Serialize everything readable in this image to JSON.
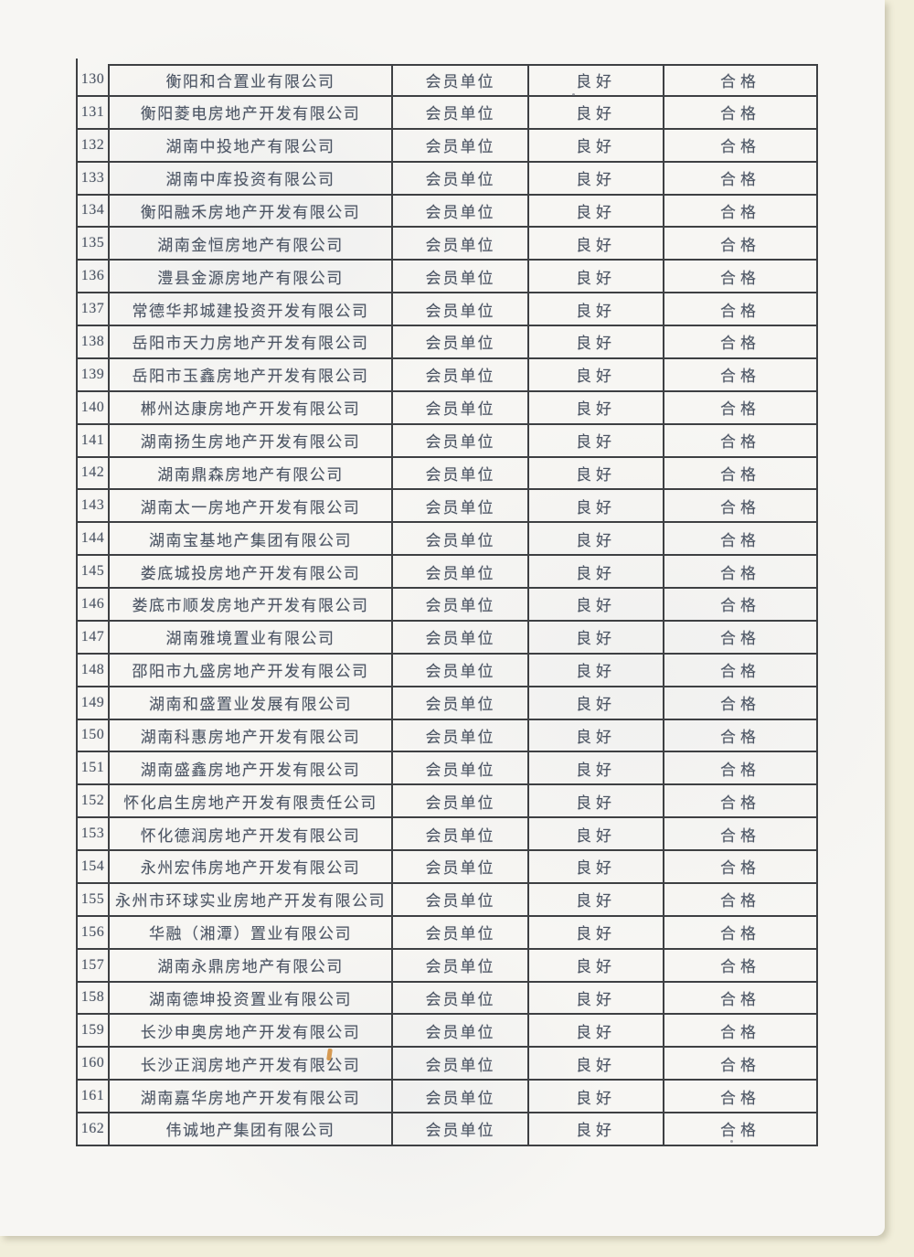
{
  "colors": {
    "backdrop": "#f1eeda",
    "page": "#f7f6f3",
    "border": "#3e4043",
    "text": "#4c5564",
    "pen_mark": "#d08a35"
  },
  "table": {
    "rows": [
      {
        "no": "130",
        "company": "衡阳和合置业有限公司",
        "membership": "会员单位",
        "credit": "良好",
        "result": "合格"
      },
      {
        "no": "131",
        "company": "衡阳菱电房地产开发有限公司",
        "membership": "会员单位",
        "credit": "良好",
        "result": "合格"
      },
      {
        "no": "132",
        "company": "湖南中投地产有限公司",
        "membership": "会员单位",
        "credit": "良好",
        "result": "合格"
      },
      {
        "no": "133",
        "company": "湖南中库投资有限公司",
        "membership": "会员单位",
        "credit": "良好",
        "result": "合格"
      },
      {
        "no": "134",
        "company": "衡阳融禾房地产开发有限公司",
        "membership": "会员单位",
        "credit": "良好",
        "result": "合格"
      },
      {
        "no": "135",
        "company": "湖南金恒房地产有限公司",
        "membership": "会员单位",
        "credit": "良好",
        "result": "合格"
      },
      {
        "no": "136",
        "company": "澧县金源房地产有限公司",
        "membership": "会员单位",
        "credit": "良好",
        "result": "合格"
      },
      {
        "no": "137",
        "company": "常德华邦城建投资开发有限公司",
        "membership": "会员单位",
        "credit": "良好",
        "result": "合格"
      },
      {
        "no": "138",
        "company": "岳阳市天力房地产开发有限公司",
        "membership": "会员单位",
        "credit": "良好",
        "result": "合格"
      },
      {
        "no": "139",
        "company": "岳阳市玉鑫房地产开发有限公司",
        "membership": "会员单位",
        "credit": "良好",
        "result": "合格"
      },
      {
        "no": "140",
        "company": "郴州达康房地产开发有限公司",
        "membership": "会员单位",
        "credit": "良好",
        "result": "合格"
      },
      {
        "no": "141",
        "company": "湖南扬生房地产开发有限公司",
        "membership": "会员单位",
        "credit": "良好",
        "result": "合格"
      },
      {
        "no": "142",
        "company": "湖南鼎森房地产有限公司",
        "membership": "会员单位",
        "credit": "良好",
        "result": "合格"
      },
      {
        "no": "143",
        "company": "湖南太一房地产开发有限公司",
        "membership": "会员单位",
        "credit": "良好",
        "result": "合格"
      },
      {
        "no": "144",
        "company": "湖南宝基地产集团有限公司",
        "membership": "会员单位",
        "credit": "良好",
        "result": "合格"
      },
      {
        "no": "145",
        "company": "娄底城投房地产开发有限公司",
        "membership": "会员单位",
        "credit": "良好",
        "result": "合格"
      },
      {
        "no": "146",
        "company": "娄底市顺发房地产开发有限公司",
        "membership": "会员单位",
        "credit": "良好",
        "result": "合格"
      },
      {
        "no": "147",
        "company": "湖南雅境置业有限公司",
        "membership": "会员单位",
        "credit": "良好",
        "result": "合格"
      },
      {
        "no": "148",
        "company": "邵阳市九盛房地产开发有限公司",
        "membership": "会员单位",
        "credit": "良好",
        "result": "合格"
      },
      {
        "no": "149",
        "company": "湖南和盛置业发展有限公司",
        "membership": "会员单位",
        "credit": "良好",
        "result": "合格"
      },
      {
        "no": "150",
        "company": "湖南科惠房地产开发有限公司",
        "membership": "会员单位",
        "credit": "良好",
        "result": "合格"
      },
      {
        "no": "151",
        "company": "湖南盛鑫房地产开发有限公司",
        "membership": "会员单位",
        "credit": "良好",
        "result": "合格"
      },
      {
        "no": "152",
        "company": "怀化启生房地产开发有限责任公司",
        "membership": "会员单位",
        "credit": "良好",
        "result": "合格"
      },
      {
        "no": "153",
        "company": "怀化德润房地产开发有限公司",
        "membership": "会员单位",
        "credit": "良好",
        "result": "合格"
      },
      {
        "no": "154",
        "company": "永州宏伟房地产开发有限公司",
        "membership": "会员单位",
        "credit": "良好",
        "result": "合格"
      },
      {
        "no": "155",
        "company": "永州市环球实业房地产开发有限公司",
        "membership": "会员单位",
        "credit": "良好",
        "result": "合格"
      },
      {
        "no": "156",
        "company": "华融（湘潭）置业有限公司",
        "membership": "会员单位",
        "credit": "良好",
        "result": "合格"
      },
      {
        "no": "157",
        "company": "湖南永鼎房地产有限公司",
        "membership": "会员单位",
        "credit": "良好",
        "result": "合格"
      },
      {
        "no": "158",
        "company": "湖南德坤投资置业有限公司",
        "membership": "会员单位",
        "credit": "良好",
        "result": "合格"
      },
      {
        "no": "159",
        "company": "长沙申奥房地产开发有限公司",
        "membership": "会员单位",
        "credit": "良好",
        "result": "合格"
      },
      {
        "no": "160",
        "company": "长沙正润房地产开发有限公司",
        "membership": "会员单位",
        "credit": "良好",
        "result": "合格"
      },
      {
        "no": "161",
        "company": "湖南嘉华房地产开发有限公司",
        "membership": "会员单位",
        "credit": "良好",
        "result": "合格"
      },
      {
        "no": "162",
        "company": "伟诚地产集团有限公司",
        "membership": "会员单位",
        "credit": "良好",
        "result": "合格"
      }
    ]
  }
}
